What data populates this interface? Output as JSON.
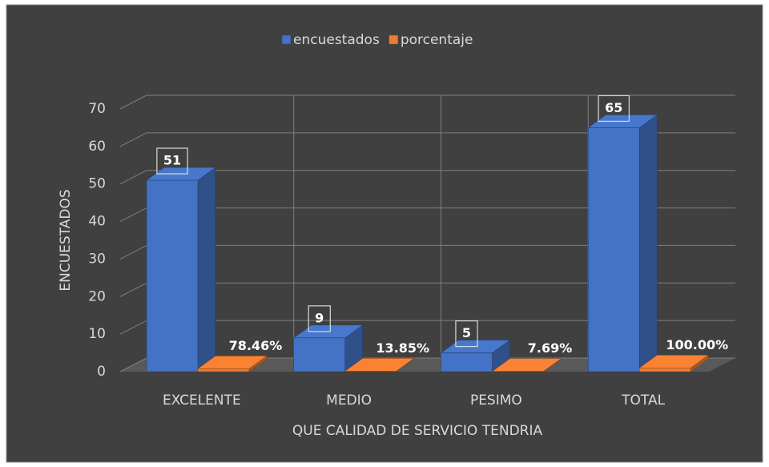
{
  "chart_data": {
    "type": "bar3d",
    "categories": [
      "EXCELENTE",
      "MEDIO",
      "PESIMO",
      "TOTAL"
    ],
    "series": [
      {
        "name": "encuestados",
        "color": "#4472c4",
        "values": [
          51,
          9,
          5,
          65
        ]
      },
      {
        "name": "porcentaje",
        "color": "#ed7d31",
        "values": [
          0.7846,
          0.1385,
          0.0769,
          1
        ],
        "value_labels": [
          "78.46%",
          "13.85%",
          "7.69%",
          "100.00%"
        ]
      }
    ],
    "xlabel": "QUE CALIDAD DE SERVICIO TENDRIA",
    "ylabel": "ENCUESTADOS",
    "ylim": [
      0,
      70
    ],
    "yticks": [
      0,
      10,
      20,
      30,
      40,
      50,
      60,
      70
    ],
    "grid": true,
    "legend": "top"
  }
}
